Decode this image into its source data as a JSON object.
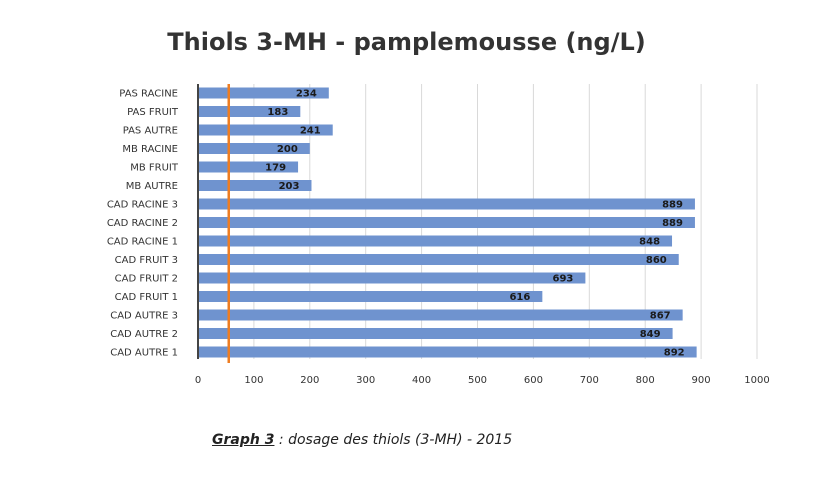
{
  "chart_data": {
    "type": "bar",
    "orientation": "horizontal",
    "title": "Thiols 3-MH - pamplemousse (ng/L)",
    "categories": [
      "PAS RACINE",
      "PAS FRUIT",
      "PAS AUTRE",
      "MB RACINE",
      "MB FRUIT",
      "MB AUTRE",
      "CAD RACINE 3",
      "CAD RACINE 2",
      "CAD RACINE 1",
      "CAD FRUIT 3",
      "CAD FRUIT 2",
      "CAD FRUIT 1",
      "CAD AUTRE 3",
      "CAD AUTRE 2",
      "CAD AUTRE 1"
    ],
    "values": [
      234,
      183,
      241,
      200,
      179,
      203,
      889,
      889,
      848,
      860,
      693,
      616,
      867,
      849,
      892
    ],
    "xlim": [
      0,
      1000
    ],
    "x_ticks": [
      "0",
      "100",
      "200",
      "300",
      "400",
      "500",
      "600",
      "700",
      "800",
      "900",
      "1000"
    ],
    "reference_line": 55,
    "grid": true,
    "bar_color": "#6f93cf",
    "reference_color": "#ee7d22"
  },
  "caption": {
    "label": "Graph 3",
    "text": " : dosage des thiols (3-MH) - 2015"
  }
}
